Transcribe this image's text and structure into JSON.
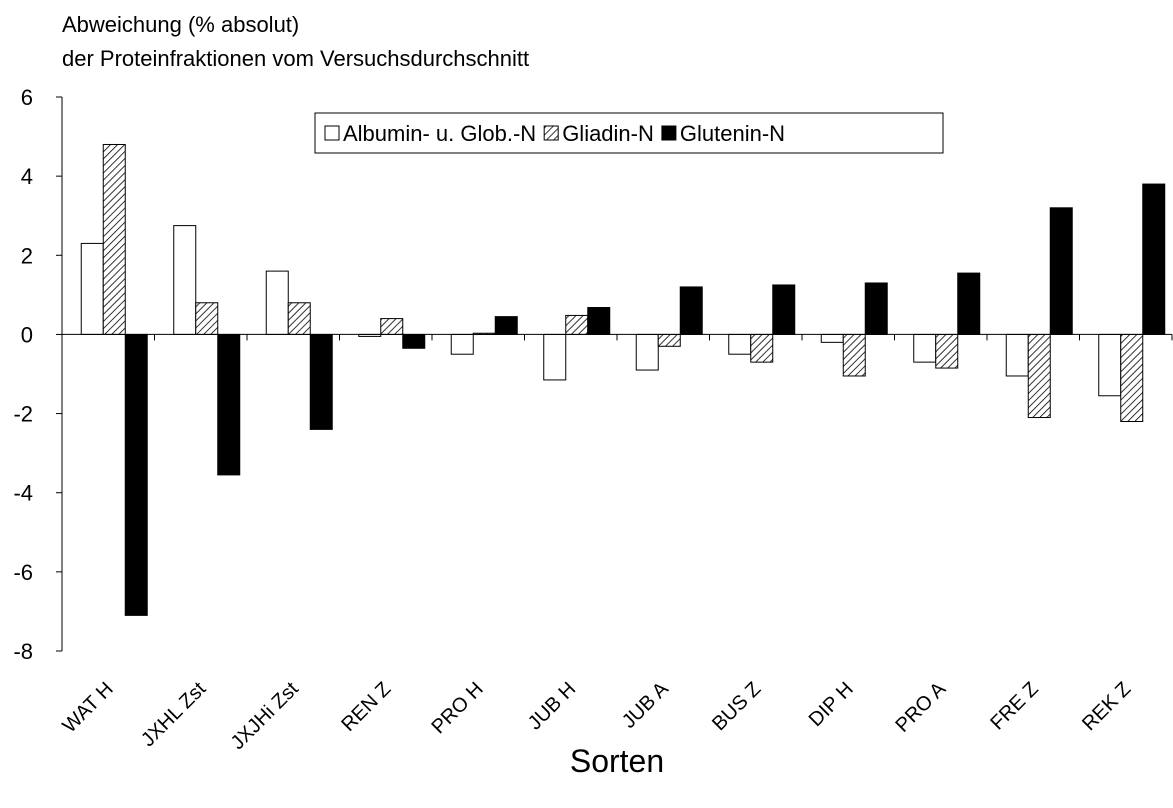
{
  "chart_data": {
    "type": "bar",
    "title": "Abweichung (% absolut)",
    "subtitle": "der Proteinfraktionen vom Versuchsdurchschnitt",
    "x_label": "Sorten",
    "categories": [
      "WAT H",
      "JXHL Zst",
      "JXJHi Zst",
      "REN Z",
      "PRO H",
      "JUB H",
      "JUB A",
      "BUS Z",
      "DIP H",
      "PRO A",
      "FRE Z",
      "REK Z"
    ],
    "series": [
      {
        "name": "Albumin- u. Glob.-N",
        "color": "#ffffff",
        "values": [
          2.3,
          2.75,
          1.6,
          -0.05,
          -0.5,
          -1.15,
          -0.9,
          -0.5,
          -0.2,
          -0.7,
          -1.05,
          -1.55
        ]
      },
      {
        "name": "Gliadin-N",
        "color": "#000000",
        "pattern": "hatch",
        "values": [
          4.8,
          0.8,
          0.8,
          0.4,
          0.03,
          0.48,
          -0.3,
          -0.7,
          -1.05,
          -0.85,
          -2.1,
          -2.2
        ]
      },
      {
        "name": "Glutenin-N",
        "color": "#000000",
        "values": [
          -7.1,
          -3.55,
          -2.4,
          -0.35,
          0.45,
          0.68,
          1.2,
          1.25,
          1.3,
          1.55,
          3.2,
          3.8
        ]
      }
    ],
    "ylim": [
      -8,
      6
    ],
    "yticks": [
      -8,
      -6,
      -4,
      -2,
      0,
      2,
      4,
      6
    ],
    "legend": "top"
  }
}
